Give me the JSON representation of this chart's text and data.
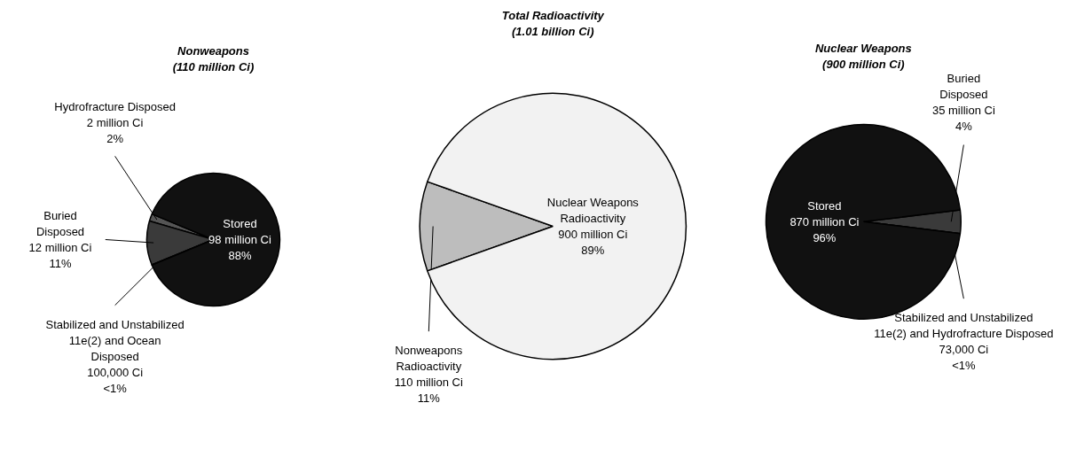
{
  "chart_data": [
    {
      "type": "pie",
      "title": "Nonweapons",
      "subtitle": "(110 million Ci)",
      "categories": [
        "Hydrofracture Disposed",
        "Buried\nDisposed",
        "Stabilized and Unstabilized\n11e(2) and Ocean\nDisposed",
        "Stored"
      ],
      "values": [
        2000000,
        12000000,
        100000,
        98000000
      ],
      "colors": [
        "#555555",
        "#3a3a3a",
        "#1c1c1c",
        "#111111"
      ],
      "value_labels": [
        "2 million Ci\n2%",
        "12 million Ci\n11%",
        "100,000 Ci\n<1%",
        "98 million Ci\n88%"
      ]
    },
    {
      "type": "pie",
      "title": "Total Radioactivity",
      "subtitle": "(1.01 billion Ci)",
      "categories": [
        "Nonweapons\nRadioactivity",
        "Nuclear Weapons\nRadioactivity"
      ],
      "values": [
        110000000,
        900000000
      ],
      "colors": [
        "#bdbdbd",
        "#f2f2f2"
      ],
      "value_labels": [
        "110 million Ci\n11%",
        "900 million Ci\n89%"
      ]
    },
    {
      "type": "pie",
      "title": "Nuclear Weapons",
      "subtitle": "(900 million Ci)",
      "categories": [
        "Buried\nDisposed",
        "Stabilized and Unstabilized\n11e(2) and Hydrofracture Disposed",
        "Stored"
      ],
      "values": [
        35000000,
        73000,
        870000000
      ],
      "colors": [
        "#3a3a3a",
        "#1c1c1c",
        "#111111"
      ],
      "value_labels": [
        "35 million Ci\n4%",
        "73,000 Ci\n<1%",
        "870 million Ci\n96%"
      ]
    }
  ]
}
